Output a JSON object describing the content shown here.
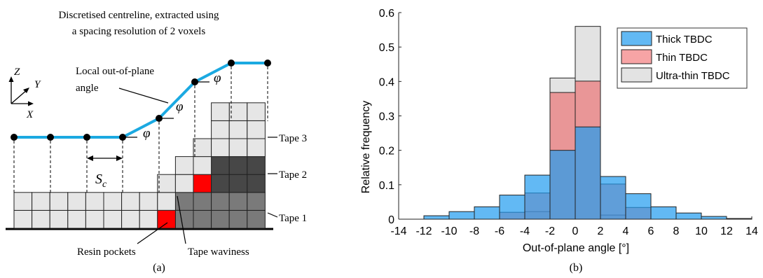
{
  "panel_a": {
    "title_line1": "Discretised centreline, extracted using",
    "title_line2": "a spacing resolution of 2 voxels",
    "axis_z": "Z",
    "axis_y": "Y",
    "axis_x": "X",
    "angle_label_line1": "Local out-of-plane",
    "angle_label_line2": "angle",
    "phi_symbol": "φ",
    "spacing_label": "S",
    "spacing_subscript": "c",
    "tape1": "Tape 1",
    "tape2": "Tape 2",
    "tape3": "Tape 3",
    "resin_pockets": "Resin pockets",
    "tape_waviness": "Tape waviness",
    "caption": "(a)",
    "colors": {
      "centreline": "#1ba9e1",
      "voxel_light": "#e6e6e6",
      "voxel_mid": "#7a7a7a",
      "voxel_dark": "#474747",
      "resin": "#ff0000"
    }
  },
  "chart_data": {
    "type": "bar",
    "x": [
      -12,
      -10,
      -8,
      -6,
      -4,
      -2,
      0,
      2,
      4,
      6,
      8,
      10,
      12
    ],
    "bin_width": 2,
    "series": [
      {
        "name": "Thick TBDC",
        "color": "#1f9bf0",
        "values": [
          0.01,
          0.022,
          0.036,
          0.07,
          0.128,
          0.2,
          0.268,
          0.124,
          0.074,
          0.036,
          0.018,
          0.008,
          0.002
        ]
      },
      {
        "name": "Thin TBDC",
        "color": "#f0494c",
        "values": [
          0.0,
          0.0,
          0.0,
          0.02,
          0.076,
          0.368,
          0.401,
          0.102,
          0.034,
          0.0,
          0.0,
          0.0,
          0.0
        ]
      },
      {
        "name": "Ultra-thin TBDC",
        "color": "#d0d0d0",
        "values": [
          0.0,
          0.0,
          0.0,
          0.0,
          0.022,
          0.41,
          0.56,
          0.012,
          0.0,
          0.0,
          0.0,
          0.0,
          0.0
        ]
      }
    ],
    "xlabel": "Out-of-plane angle  [°]",
    "ylabel": "Relative frequency",
    "xlim": [
      -14,
      14
    ],
    "ylim": [
      0,
      0.6
    ],
    "xticks": [
      "-14",
      "-12",
      "-10",
      "-8",
      "-6",
      "-4",
      "-2",
      "0",
      "2",
      "4",
      "6",
      "8",
      "10",
      "12",
      "14"
    ],
    "yticks": [
      "0",
      "0.1",
      "0.2",
      "0.3",
      "0.4",
      "0.5",
      "0.6"
    ],
    "legend_position": "top-right",
    "grid": false,
    "caption": "(b)"
  }
}
